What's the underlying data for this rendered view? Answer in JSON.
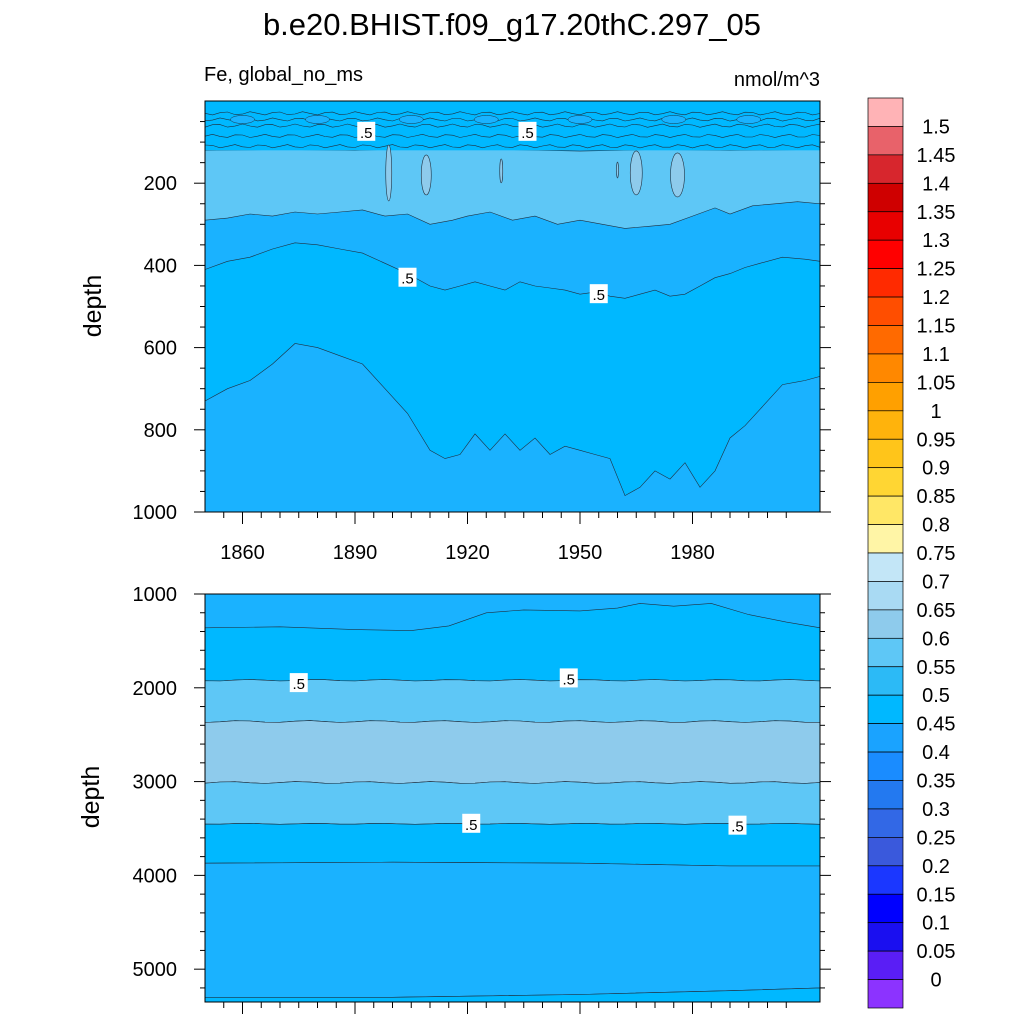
{
  "title": "b.e20.BHIST.f09_g17.20thC.297_05",
  "chart_data": [
    {
      "type": "heatmap",
      "subtype": "filled-contour",
      "left_label": "Fe, global_no_ms",
      "right_label": "nmol/m^3",
      "xlabel": "",
      "ylabel": "depth",
      "xlim": [
        1850,
        2014
      ],
      "ylim": [
        1000,
        0
      ],
      "xticks": [
        1860,
        1890,
        1920,
        1950,
        1980
      ],
      "yticks": [
        200,
        400,
        600,
        800,
        1000
      ],
      "contour_labels": [
        {
          "text": ".5",
          "x": 1893,
          "y": 75
        },
        {
          "text": ".5",
          "x": 1936,
          "y": 75
        },
        {
          "text": ".5",
          "x": 1904,
          "y": 430
        },
        {
          "text": ".5",
          "x": 1955,
          "y": 470
        }
      ],
      "levels": [
        {
          "value": 0.45,
          "color": "#1ab2ff",
          "boundary": "lower-water",
          "description": "deep region from ~600 m down to 1000 m"
        },
        {
          "value": 0.5,
          "color": "#00b8ff",
          "description": "middle layer ~300-900 m"
        },
        {
          "value": 0.55,
          "color": "#5ec7f6",
          "description": "layer ~120-320 m"
        },
        {
          "value": 0.6,
          "color": "#8ecbec",
          "description": "small patches ~150-200 m"
        }
      ]
    },
    {
      "type": "heatmap",
      "subtype": "filled-contour",
      "xlabel": "",
      "ylabel": "depth",
      "xlim": [
        1850,
        2014
      ],
      "ylim": [
        5350,
        1000
      ],
      "yticks": [
        1000,
        2000,
        3000,
        4000,
        5000
      ],
      "contour_labels": [
        {
          "text": ".5",
          "x": 1875,
          "y": 1950
        },
        {
          "text": ".5",
          "x": 1947,
          "y": 1900
        },
        {
          "text": ".5",
          "x": 1921,
          "y": 3450
        },
        {
          "text": ".5",
          "x": 1992,
          "y": 3470
        }
      ],
      "bands_depth": {
        "0.45_top": 1000,
        "0.5_1": [
          1400,
          1900
        ],
        "0.55_1": [
          1900,
          2350
        ],
        "0.6": [
          2350,
          3000
        ],
        "0.55_2": [
          3000,
          3450
        ],
        "0.5_2": [
          3450,
          3870
        ],
        "0.45_bottom": [
          3870,
          5300
        ],
        "0.5_bottom": [
          5300,
          5350
        ]
      }
    }
  ],
  "colorbar": {
    "labels": [
      "1.5",
      "1.45",
      "1.4",
      "1.35",
      "1.3",
      "1.25",
      "1.2",
      "1.15",
      "1.1",
      "1.05",
      "1",
      "0.95",
      "0.9",
      "0.85",
      "0.8",
      "0.75",
      "0.7",
      "0.65",
      "0.6",
      "0.55",
      "0.5",
      "0.45",
      "0.4",
      "0.35",
      "0.3",
      "0.25",
      "0.2",
      "0.15",
      "0.1",
      "0.05",
      "0"
    ],
    "colors": [
      "#ffb3b6",
      "#e8626a",
      "#d7262d",
      "#cf0000",
      "#e80000",
      "#ff0000",
      "#ff2a00",
      "#ff4e00",
      "#ff6a00",
      "#ff8800",
      "#ffa000",
      "#ffb30c",
      "#ffc51a",
      "#ffd633",
      "#ffe766",
      "#fff5a6",
      "#c3e6f7",
      "#a9daf3",
      "#8ecbec",
      "#5ec7f6",
      "#2cbaf6",
      "#00b8ff",
      "#1aa3ff",
      "#1a8cff",
      "#2379f0",
      "#3268e6",
      "#3a59dc",
      "#1b37ff",
      "#0000ff",
      "#1a0ff0",
      "#5a1ef5",
      "#8c33ff"
    ]
  }
}
